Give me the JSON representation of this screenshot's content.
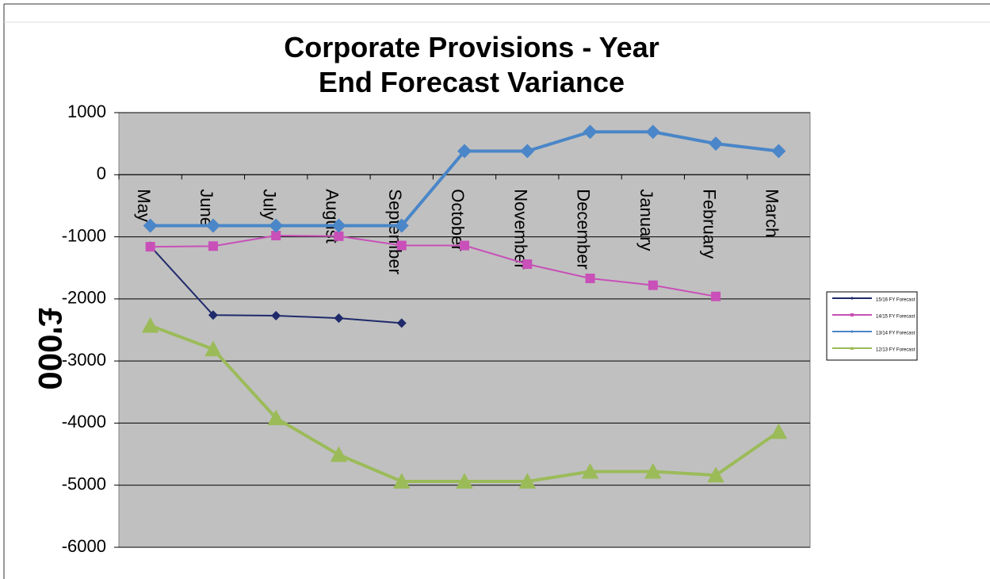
{
  "chart_data": {
    "type": "line",
    "title": "Corporate Provisions - Year End Forecast Variance",
    "y_label": "£'000",
    "categories": [
      "May",
      "June",
      "July",
      "August",
      "September",
      "October",
      "November",
      "December",
      "January",
      "February",
      "March"
    ],
    "series": [
      {
        "name": "15/16 FY Forecast",
        "color": "#1f2a6b",
        "marker": "diamond",
        "width": 2,
        "values": [
          -1150,
          -2260,
          -2270,
          -2310,
          -2390,
          null,
          null,
          null,
          null,
          null,
          null
        ]
      },
      {
        "name": "14/15 FY Forecast",
        "color": "#c850b8",
        "marker": "square",
        "width": 2,
        "values": [
          -1160,
          -1150,
          -980,
          -990,
          -1140,
          -1140,
          -1440,
          -1670,
          -1780,
          -1960,
          null
        ]
      },
      {
        "name": "13/14 FY Forecast",
        "color": "#4a86c8",
        "marker": "diamond",
        "width": 4,
        "values": [
          -820,
          -820,
          -820,
          -820,
          -820,
          380,
          380,
          690,
          690,
          500,
          380
        ]
      },
      {
        "name": "12/13 FY Forecast",
        "color": "#9bbb59",
        "marker": "triangle",
        "width": 4,
        "values": [
          -2430,
          -2810,
          -3920,
          -4510,
          -4940,
          -4940,
          -4940,
          -4780,
          -4780,
          -4840,
          -4140
        ]
      }
    ],
    "ylim": [
      -6000,
      1000
    ],
    "yticks": [
      -6000,
      -5000,
      -4000,
      -3000,
      -2000,
      -1000,
      0,
      1000
    ],
    "grid": true,
    "legend": "right"
  }
}
